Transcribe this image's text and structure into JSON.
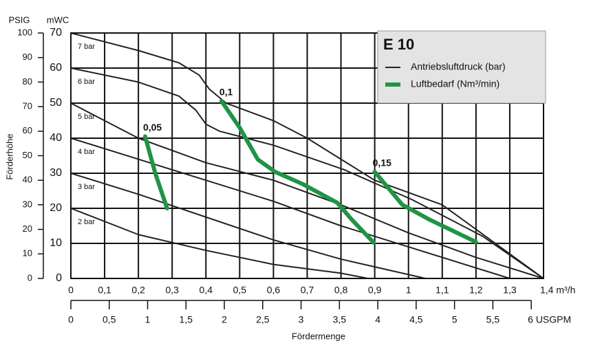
{
  "chart_data": {
    "type": "line",
    "title": "E 10",
    "xlabel": "Fördermenge",
    "ylabel": "Förderhöhe",
    "ylabel_units": "mWC",
    "y2label": "PSIG",
    "xlim": [
      0,
      1.4
    ],
    "xticks": [
      0,
      {
        "value": 0.1,
        "label": "0,1"
      },
      {
        "value": 0.2,
        "label": "0,2"
      },
      {
        "value": 0.3,
        "label": "0,3"
      },
      {
        "value": 0.4,
        "label": "0,4"
      },
      {
        "value": 0.5,
        "label": "0,5"
      },
      {
        "value": 0.6,
        "label": "0,6"
      },
      {
        "value": 0.7,
        "label": "0,7"
      },
      {
        "value": 0.8,
        "label": "0,8"
      },
      {
        "value": 0.9,
        "label": "0,9"
      },
      1,
      {
        "value": 1.1,
        "label": "1,1"
      },
      {
        "value": 1.2,
        "label": "1,2"
      },
      {
        "value": 1.3,
        "label": "1,3"
      },
      {
        "value": 1.4,
        "label": "1,4 m³/h"
      }
    ],
    "x2lim": [
      0,
      6.16
    ],
    "x2ticks": [
      0,
      {
        "value": 0.5,
        "label": "0,5"
      },
      1,
      {
        "value": 1.5,
        "label": "1,5"
      },
      2,
      {
        "value": 2.5,
        "label": "2,5"
      },
      3,
      {
        "value": 3.5,
        "label": "3,5"
      },
      4,
      {
        "value": 4.5,
        "label": "4,5"
      },
      5,
      {
        "value": 5.5,
        "label": "5,5"
      },
      {
        "value": 6,
        "label": "6 USGPM"
      }
    ],
    "ylim": [
      0,
      70
    ],
    "yticks": [
      0,
      10,
      20,
      30,
      40,
      50,
      60,
      70
    ],
    "y2lim": [
      0,
      100
    ],
    "y2ticks": [
      0,
      10,
      20,
      30,
      40,
      50,
      60,
      70,
      80,
      90,
      100
    ],
    "grid": true,
    "legend": {
      "position": "upper right",
      "entries": [
        {
          "label": "Antriebsluftdruck (bar)",
          "color": "#222222",
          "linewidth": 2
        },
        {
          "label": "Luftbedarf (Nm³/min)",
          "color": "#1f9445",
          "linewidth": 6
        }
      ]
    },
    "series": [
      {
        "name": "7 bar",
        "color": "#222222",
        "linewidth": 2,
        "x": [
          0,
          0.2,
          0.32,
          0.38,
          0.41,
          0.46,
          0.6,
          0.7,
          0.8,
          0.9,
          1.1,
          1.2,
          1.4
        ],
        "values": [
          70,
          65,
          61.5,
          58,
          54,
          50,
          45,
          40,
          34,
          28,
          21,
          14,
          0
        ]
      },
      {
        "name": "6 bar",
        "color": "#222222",
        "linewidth": 2,
        "x": [
          0,
          0.2,
          0.32,
          0.37,
          0.4,
          0.44,
          0.6,
          0.81,
          1.01,
          1.22,
          1.4
        ],
        "values": [
          60,
          56,
          52,
          48,
          44,
          42,
          38,
          31,
          22.5,
          12,
          0
        ]
      },
      {
        "name": "5 bar",
        "color": "#222222",
        "linewidth": 2,
        "x": [
          0,
          0.1,
          0.2,
          0.3,
          0.4,
          0.6,
          0.8,
          1.0,
          1.2,
          1.4
        ],
        "values": [
          50,
          45,
          40,
          36.5,
          33,
          28,
          21,
          13,
          6,
          0
        ]
      },
      {
        "name": "4 bar",
        "color": "#222222",
        "linewidth": 2,
        "x": [
          0,
          0.2,
          0.4,
          0.6,
          0.8,
          1.0,
          1.3
        ],
        "values": [
          40,
          34,
          28,
          22,
          15,
          9,
          0
        ]
      },
      {
        "name": "3 bar",
        "color": "#222222",
        "linewidth": 2,
        "x": [
          0,
          0.2,
          0.4,
          0.6,
          0.8,
          1.05
        ],
        "values": [
          30,
          24,
          17.5,
          11,
          5.5,
          0
        ]
      },
      {
        "name": "2 bar",
        "color": "#222222",
        "linewidth": 2,
        "x": [
          0,
          0.2,
          0.4,
          0.6,
          0.8,
          0.88
        ],
        "values": [
          20,
          12.5,
          8,
          4,
          1.5,
          0
        ]
      },
      {
        "name": "0,05",
        "color": "#1f9445",
        "linewidth": 6,
        "x": [
          0.22,
          0.25,
          0.285
        ],
        "values": [
          40.5,
          30,
          20
        ]
      },
      {
        "name": "0,1",
        "color": "#1f9445",
        "linewidth": 6,
        "x": [
          0.446,
          0.5,
          0.554,
          0.605,
          0.687,
          0.789,
          0.83,
          0.897
        ],
        "values": [
          50.6,
          43,
          33.9,
          30.4,
          26.9,
          21.6,
          17,
          10.2
        ]
      },
      {
        "name": "0,15",
        "color": "#1f9445",
        "linewidth": 6,
        "x": [
          0.9,
          0.982,
          1.064,
          1.2
        ],
        "values": [
          30.4,
          21,
          16.7,
          10.4
        ]
      }
    ]
  }
}
